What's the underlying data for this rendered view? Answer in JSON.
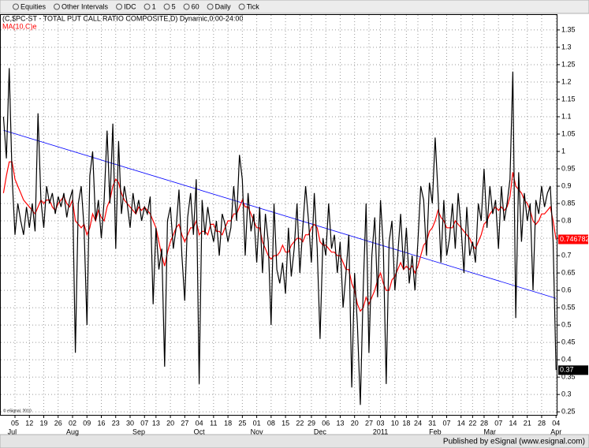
{
  "toolbar": [
    "Equities",
    "Other Intervals",
    "IDC",
    "1",
    "5",
    "60",
    "Daily",
    "Tick"
  ],
  "footer": "Published by eSignal (www.esignal.com)",
  "copyright": "© eSignal, 2010",
  "chart_data": {
    "type": "line",
    "title": "(C,$PC-ST - TOTAL PUT CALL RATIO COMPOSITE,D) Dynamic,0:00-24:00",
    "categories": [
      null,
      null,
      null,
      null,
      "05",
      null,
      null,
      null,
      null,
      "12",
      null,
      null,
      null,
      null,
      "19",
      null,
      null,
      null,
      null,
      "26",
      null,
      null,
      null,
      null,
      "02",
      null,
      null,
      null,
      null,
      "09",
      null,
      null,
      null,
      null,
      "16",
      null,
      null,
      null,
      null,
      "23",
      null,
      null,
      null,
      null,
      "30",
      null,
      null,
      null,
      null,
      "07",
      null,
      null,
      null,
      "13",
      null,
      null,
      null,
      null,
      "20",
      null,
      null,
      null,
      null,
      "27",
      null,
      null,
      null,
      null,
      "04",
      null,
      null,
      null,
      null,
      "11",
      null,
      null,
      null,
      null,
      "18",
      null,
      null,
      null,
      null,
      "25",
      null,
      null,
      null,
      null,
      "01",
      null,
      null,
      null,
      null,
      "08",
      null,
      null,
      null,
      null,
      "15",
      null,
      null,
      null,
      null,
      "22",
      null,
      null,
      null,
      "29",
      null,
      null,
      null,
      null,
      "06",
      null,
      null,
      null,
      null,
      "13",
      null,
      null,
      null,
      null,
      "20",
      null,
      null,
      null,
      null,
      "27",
      null,
      null,
      null,
      "03",
      null,
      null,
      null,
      null,
      "10",
      null,
      null,
      null,
      "18",
      null,
      null,
      null,
      "24",
      null,
      null,
      null,
      null,
      "31",
      null,
      null,
      null,
      null,
      "07",
      null,
      null,
      null,
      null,
      "14",
      null,
      null,
      null,
      "22",
      null,
      null,
      null,
      "28",
      null,
      null,
      null,
      null,
      "07",
      null,
      null,
      null,
      null,
      "14",
      null,
      null,
      null,
      null,
      "21",
      null,
      null,
      null,
      null,
      "28",
      null,
      null,
      null,
      null,
      "04"
    ],
    "category_groups": [
      null,
      null,
      null,
      "Jul",
      null,
      null,
      null,
      null,
      null,
      null,
      null,
      null,
      null,
      null,
      null,
      null,
      null,
      null,
      null,
      null,
      null,
      null,
      null,
      null,
      "Aug",
      null,
      null,
      null,
      null,
      null,
      null,
      null,
      null,
      null,
      null,
      null,
      null,
      null,
      null,
      null,
      null,
      null,
      null,
      null,
      null,
      null,
      null,
      "Sep",
      null,
      null,
      null,
      null,
      null,
      null,
      null,
      null,
      null,
      null,
      null,
      null,
      null,
      null,
      null,
      null,
      null,
      null,
      null,
      null,
      "Oct",
      null,
      null,
      null,
      null,
      null,
      null,
      null,
      null,
      null,
      null,
      null,
      null,
      null,
      null,
      null,
      null,
      null,
      null,
      null,
      "Nov",
      null,
      null,
      null,
      null,
      null,
      null,
      null,
      null,
      null,
      null,
      null,
      null,
      null,
      null,
      null,
      null,
      null,
      null,
      null,
      null,
      null,
      "Dec",
      null,
      null,
      null,
      null,
      null,
      null,
      null,
      null,
      null,
      null,
      null,
      null,
      null,
      null,
      null,
      null,
      null,
      null,
      null,
      null,
      "2011",
      null,
      null,
      null,
      null,
      null,
      null,
      null,
      null,
      null,
      null,
      null,
      null,
      null,
      null,
      null,
      null,
      null,
      null,
      "Feb",
      null,
      null,
      null,
      null,
      null,
      null,
      null,
      null,
      null,
      null,
      null,
      null,
      null,
      null,
      null,
      null,
      null,
      null,
      "Mar",
      null,
      null,
      null,
      null,
      null,
      null,
      null,
      null,
      null,
      null,
      null,
      null,
      null,
      null,
      null,
      null,
      null,
      null,
      null,
      null,
      null,
      null,
      "Apr"
    ],
    "series": [
      {
        "name": "(C,$PC-ST - TOTAL PUT CALL RATIO COMPOSITE,D) Dynamic,0:00-24:00",
        "color": "#000000",
        "values": [
          1.1,
          0.98,
          1.24,
          0.93,
          0.76,
          0.85,
          0.8,
          0.76,
          0.84,
          0.78,
          0.85,
          0.77,
          1.11,
          0.86,
          0.78,
          0.9,
          0.85,
          0.88,
          0.82,
          0.87,
          0.84,
          0.88,
          0.81,
          0.86,
          0.89,
          0.42,
          0.85,
          0.9,
          0.78,
          0.5,
          0.93,
          1.0,
          0.8,
          0.86,
          0.75,
          0.86,
          1.06,
          0.85,
          1.08,
          0.72,
          1.03,
          0.82,
          0.9,
          0.85,
          0.78,
          0.88,
          0.82,
          0.86,
          0.8,
          0.84,
          0.82,
          0.87,
          0.56,
          0.78,
          0.66,
          0.72,
          0.38,
          0.8,
          0.84,
          0.72,
          0.78,
          0.89,
          0.7,
          0.57,
          0.81,
          0.88,
          0.76,
          0.92,
          0.33,
          0.86,
          0.76,
          0.84,
          0.78,
          0.74,
          0.8,
          0.7,
          0.82,
          0.79,
          0.74,
          0.78,
          0.9,
          0.8,
          0.99,
          0.92,
          0.7,
          0.88,
          0.77,
          0.82,
          0.68,
          0.84,
          0.65,
          0.82,
          0.74,
          0.5,
          0.85,
          0.66,
          0.62,
          0.68,
          0.59,
          0.78,
          0.64,
          0.72,
          0.85,
          0.65,
          0.78,
          0.9,
          0.8,
          0.68,
          0.88,
          0.72,
          0.46,
          0.75,
          0.7,
          0.85,
          0.72,
          0.76,
          0.65,
          0.74,
          0.55,
          0.65,
          0.76,
          0.32,
          0.65,
          0.5,
          0.27,
          0.6,
          0.85,
          0.42,
          0.7,
          0.81,
          0.58,
          0.86,
          0.72,
          0.33,
          0.74,
          0.8,
          0.6,
          0.7,
          0.82,
          0.66,
          0.78,
          0.62,
          0.7,
          0.6,
          0.74,
          0.9,
          0.86,
          0.7,
          0.91,
          0.85,
          1.04,
          0.88,
          0.68,
          0.86,
          0.7,
          0.75,
          0.85,
          0.72,
          0.88,
          0.78,
          0.65,
          0.84,
          0.7,
          0.74,
          0.68,
          0.85,
          0.8,
          0.95,
          0.78,
          0.9,
          0.82,
          0.86,
          0.72,
          0.9,
          0.8,
          0.85,
          0.92,
          1.23,
          0.52,
          0.94,
          0.74,
          0.88,
          0.8,
          0.85,
          0.6,
          0.86,
          0.82,
          0.9,
          0.84,
          0.88,
          0.9,
          0.74,
          0.37
        ]
      },
      {
        "name": "MA(10,C)e",
        "color": "#ff0000",
        "values": [
          0.88,
          0.93,
          0.97,
          0.97,
          0.92,
          0.9,
          0.88,
          0.86,
          0.85,
          0.84,
          0.83,
          0.82,
          0.84,
          0.86,
          0.85,
          0.86,
          0.86,
          0.84,
          0.83,
          0.85,
          0.86,
          0.87,
          0.85,
          0.84,
          0.86,
          0.8,
          0.79,
          0.78,
          0.79,
          0.76,
          0.78,
          0.82,
          0.8,
          0.83,
          0.81,
          0.8,
          0.84,
          0.86,
          0.9,
          0.92,
          0.91,
          0.88,
          0.86,
          0.85,
          0.84,
          0.83,
          0.82,
          0.84,
          0.83,
          0.84,
          0.83,
          0.82,
          0.8,
          0.78,
          0.74,
          0.7,
          0.67,
          0.71,
          0.74,
          0.76,
          0.78,
          0.79,
          0.76,
          0.74,
          0.76,
          0.78,
          0.78,
          0.8,
          0.76,
          0.77,
          0.77,
          0.76,
          0.79,
          0.79,
          0.77,
          0.77,
          0.76,
          0.78,
          0.8,
          0.8,
          0.82,
          0.82,
          0.84,
          0.86,
          0.84,
          0.84,
          0.82,
          0.8,
          0.78,
          0.78,
          0.74,
          0.72,
          0.7,
          0.69,
          0.7,
          0.7,
          0.71,
          0.73,
          0.71,
          0.71,
          0.73,
          0.74,
          0.75,
          0.75,
          0.74,
          0.76,
          0.76,
          0.78,
          0.79,
          0.78,
          0.74,
          0.73,
          0.73,
          0.72,
          0.71,
          0.71,
          0.7,
          0.7,
          0.68,
          0.66,
          0.66,
          0.62,
          0.6,
          0.56,
          0.54,
          0.55,
          0.58,
          0.56,
          0.58,
          0.6,
          0.63,
          0.65,
          0.62,
          0.6,
          0.6,
          0.63,
          0.64,
          0.66,
          0.68,
          0.66,
          0.67,
          0.66,
          0.67,
          0.65,
          0.67,
          0.7,
          0.73,
          0.74,
          0.77,
          0.78,
          0.8,
          0.83,
          0.81,
          0.8,
          0.78,
          0.78,
          0.78,
          0.8,
          0.79,
          0.78,
          0.77,
          0.76,
          0.75,
          0.73,
          0.72,
          0.74,
          0.76,
          0.79,
          0.8,
          0.82,
          0.83,
          0.84,
          0.83,
          0.84,
          0.83,
          0.84,
          0.87,
          0.94,
          0.9,
          0.89,
          0.88,
          0.86,
          0.85,
          0.83,
          0.8,
          0.79,
          0.8,
          0.82,
          0.82,
          0.83,
          0.84,
          0.8,
          0.746782
        ]
      }
    ],
    "trendline": {
      "color": "#0000ff",
      "values": [
        1.061,
        0.577
      ]
    },
    "ylim": [
      0.239,
      1.418
    ],
    "yticks": [
      0.25,
      0.3,
      0.35,
      0.4,
      0.45,
      0.5,
      0.55,
      0.6,
      0.65,
      0.7,
      0.75,
      0.8,
      0.85,
      0.9,
      0.95,
      1,
      1.05,
      1.1,
      1.15,
      1.2,
      1.25,
      1.3,
      1.35
    ],
    "grid": true
  }
}
